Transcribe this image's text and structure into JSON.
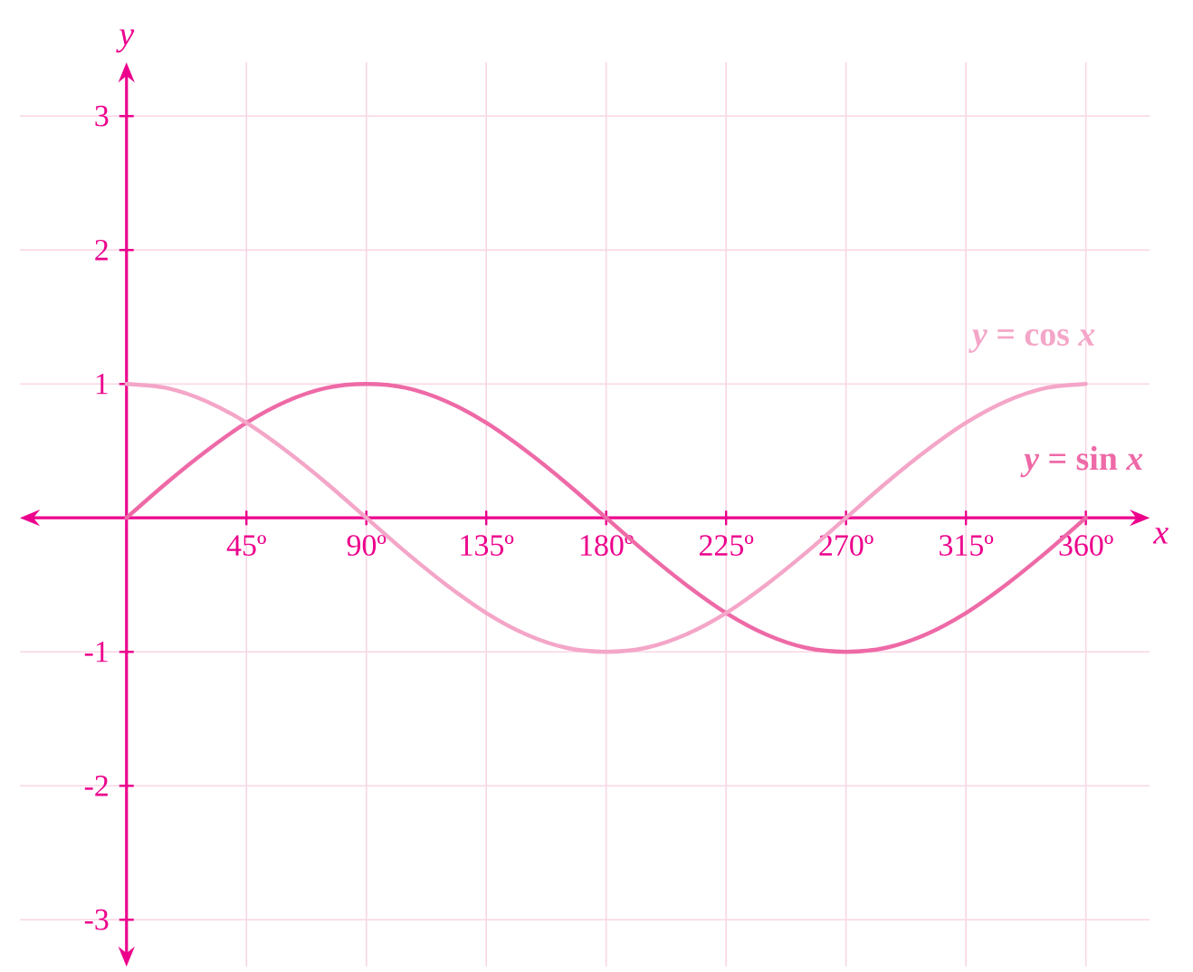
{
  "chart_data": {
    "type": "line",
    "xlabel": "x",
    "ylabel": "y",
    "x": [
      0,
      15,
      30,
      45,
      60,
      75,
      90,
      105,
      120,
      135,
      150,
      165,
      180,
      195,
      210,
      225,
      240,
      255,
      270,
      285,
      300,
      315,
      330,
      345,
      360
    ],
    "series": [
      {
        "name": "*y* = sin *x*",
        "color": "#ee6aa7",
        "values": [
          0,
          0.26,
          0.5,
          0.71,
          0.87,
          0.97,
          1,
          0.97,
          0.87,
          0.71,
          0.5,
          0.26,
          0,
          -0.26,
          -0.5,
          -0.71,
          -0.87,
          -0.97,
          -1,
          -0.97,
          -0.87,
          -0.71,
          -0.5,
          -0.26,
          0
        ]
      },
      {
        "name": "*y* = cos *x*",
        "color": "#f4a6c8",
        "values": [
          1,
          0.97,
          0.87,
          0.71,
          0.5,
          0.26,
          0,
          -0.26,
          -0.5,
          -0.71,
          -0.87,
          -0.97,
          -1,
          -0.97,
          -0.87,
          -0.71,
          -0.5,
          -0.26,
          0,
          0.26,
          0.5,
          0.71,
          0.87,
          0.97,
          1
        ]
      }
    ],
    "xlim": [
      -40,
      384
    ],
    "ylim": [
      -3.35,
      3.4
    ],
    "xticks": [
      {
        "value": 45,
        "label": "45º"
      },
      {
        "value": 90,
        "label": "90º"
      },
      {
        "value": 135,
        "label": "135º"
      },
      {
        "value": 180,
        "label": "180º"
      },
      {
        "value": 225,
        "label": "225º"
      },
      {
        "value": 270,
        "label": "270º"
      },
      {
        "value": 315,
        "label": "315º"
      },
      {
        "value": 360,
        "label": "360º"
      }
    ],
    "yticks": [
      -3,
      -2,
      -1,
      1,
      2,
      3
    ],
    "grid": true
  }
}
